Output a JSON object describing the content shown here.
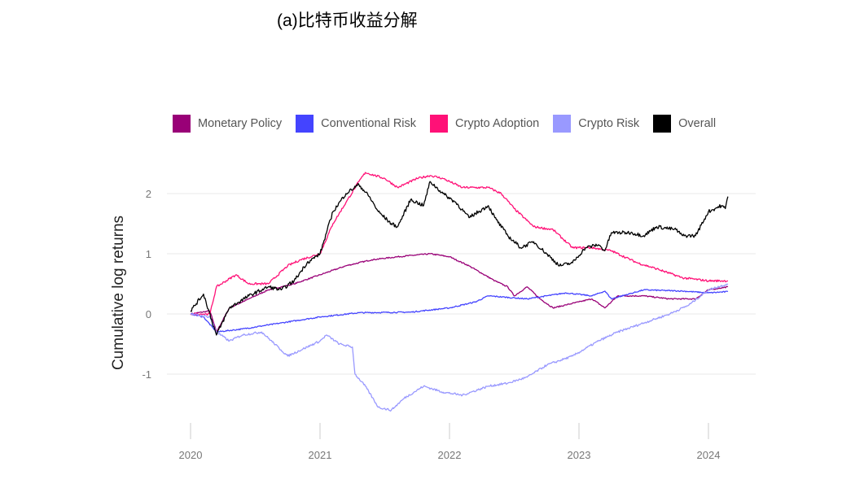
{
  "title": "(a)比特币收益分解",
  "chart_data": {
    "type": "line",
    "title": "(a)比特币收益分解",
    "xlabel": "",
    "ylabel": "Cumulative log returns",
    "xlim": [
      2019.85,
      2024.35
    ],
    "ylim": [
      -1.85,
      2.5
    ],
    "xticks": [
      2020,
      2021,
      2022,
      2023,
      2024
    ],
    "yticks": [
      -1,
      0,
      1,
      2
    ],
    "grid": "horizontal",
    "legend": "top",
    "series": [
      {
        "name": "Monetary Policy",
        "color": "#990077",
        "x": [
          2020.0,
          2020.15,
          2020.2,
          2020.3,
          2020.45,
          2020.6,
          2020.8,
          2021.0,
          2021.2,
          2021.4,
          2021.6,
          2021.85,
          2022.0,
          2022.15,
          2022.35,
          2022.45,
          2022.5,
          2022.6,
          2022.7,
          2022.8,
          2022.9,
          2023.0,
          2023.1,
          2023.2,
          2023.3,
          2023.5,
          2023.7,
          2023.9,
          2024.0,
          2024.15
        ],
        "y": [
          0,
          0.05,
          -0.3,
          0.1,
          0.25,
          0.4,
          0.5,
          0.65,
          0.8,
          0.9,
          0.95,
          1.0,
          0.95,
          0.8,
          0.55,
          0.45,
          0.3,
          0.45,
          0.25,
          0.1,
          0.15,
          0.2,
          0.25,
          0.1,
          0.3,
          0.3,
          0.25,
          0.25,
          0.4,
          0.45
        ]
      },
      {
        "name": "Conventional Risk",
        "color": "#4444ff",
        "x": [
          2020.0,
          2020.1,
          2020.2,
          2020.4,
          2020.7,
          2021.0,
          2021.3,
          2021.7,
          2022.0,
          2022.2,
          2022.3,
          2022.6,
          2022.9,
          2023.1,
          2023.2,
          2023.25,
          2023.5,
          2023.8,
          2024.0,
          2024.15
        ],
        "y": [
          0,
          -0.05,
          -0.3,
          -0.25,
          -0.15,
          -0.05,
          0.02,
          0.03,
          0.1,
          0.2,
          0.3,
          0.25,
          0.35,
          0.3,
          0.38,
          0.25,
          0.4,
          0.38,
          0.35,
          0.37
        ]
      },
      {
        "name": "Crypto Adoption",
        "color": "#ff1177",
        "x": [
          2020.0,
          2020.15,
          2020.2,
          2020.35,
          2020.45,
          2020.6,
          2020.75,
          2020.85,
          2021.0,
          2021.1,
          2021.2,
          2021.3,
          2021.35,
          2021.5,
          2021.6,
          2021.75,
          2021.85,
          2021.95,
          2022.1,
          2022.3,
          2022.4,
          2022.5,
          2022.65,
          2022.8,
          2022.95,
          2023.1,
          2023.25,
          2023.45,
          2023.6,
          2023.8,
          2024.0,
          2024.15
        ],
        "y": [
          0,
          0,
          0.45,
          0.65,
          0.5,
          0.5,
          0.8,
          0.9,
          1.0,
          1.5,
          1.85,
          2.2,
          2.35,
          2.25,
          2.1,
          2.25,
          2.3,
          2.25,
          2.1,
          2.1,
          2.0,
          1.75,
          1.45,
          1.4,
          1.1,
          1.1,
          1.05,
          0.85,
          0.75,
          0.6,
          0.55,
          0.55
        ]
      },
      {
        "name": "Crypto Risk",
        "color": "#9999ff",
        "x": [
          2020.0,
          2020.15,
          2020.2,
          2020.3,
          2020.4,
          2020.55,
          2020.7,
          2020.75,
          2020.9,
          2021.0,
          2021.05,
          2021.15,
          2021.25,
          2021.27,
          2021.35,
          2021.45,
          2021.55,
          2021.65,
          2021.8,
          2021.95,
          2022.1,
          2022.3,
          2022.45,
          2022.6,
          2022.75,
          2022.95,
          2023.15,
          2023.3,
          2023.5,
          2023.7,
          2023.85,
          2024.0,
          2024.15
        ],
        "y": [
          0,
          -0.05,
          -0.3,
          -0.45,
          -0.35,
          -0.3,
          -0.6,
          -0.7,
          -0.55,
          -0.45,
          -0.35,
          -0.5,
          -0.55,
          -1.0,
          -1.2,
          -1.55,
          -1.6,
          -1.4,
          -1.2,
          -1.3,
          -1.35,
          -1.2,
          -1.15,
          -1.05,
          -0.85,
          -0.7,
          -0.45,
          -0.3,
          -0.15,
          0.0,
          0.15,
          0.4,
          0.5
        ]
      },
      {
        "name": "Overall",
        "color": "#000000",
        "x": [
          2020.0,
          2020.1,
          2020.2,
          2020.3,
          2020.45,
          2020.6,
          2020.7,
          2020.8,
          2020.9,
          2021.0,
          2021.1,
          2021.2,
          2021.3,
          2021.38,
          2021.45,
          2021.55,
          2021.6,
          2021.7,
          2021.8,
          2021.85,
          2021.95,
          2022.05,
          2022.15,
          2022.3,
          2022.35,
          2022.45,
          2022.55,
          2022.65,
          2022.75,
          2022.85,
          2022.95,
          2023.05,
          2023.15,
          2023.2,
          2023.25,
          2023.4,
          2023.5,
          2023.6,
          2023.75,
          2023.8,
          2023.9,
          2024.0,
          2024.1,
          2024.13,
          2024.15
        ],
        "y": [
          0.05,
          0.33,
          -0.35,
          0.1,
          0.3,
          0.45,
          0.4,
          0.55,
          0.85,
          1.0,
          1.7,
          2.0,
          2.15,
          1.95,
          1.7,
          1.5,
          1.45,
          1.9,
          1.8,
          2.2,
          2.0,
          1.85,
          1.6,
          1.8,
          1.6,
          1.3,
          1.1,
          1.2,
          1.0,
          0.8,
          0.85,
          1.1,
          1.15,
          1.05,
          1.35,
          1.35,
          1.3,
          1.45,
          1.4,
          1.3,
          1.3,
          1.7,
          1.8,
          1.75,
          1.95
        ]
      }
    ]
  }
}
